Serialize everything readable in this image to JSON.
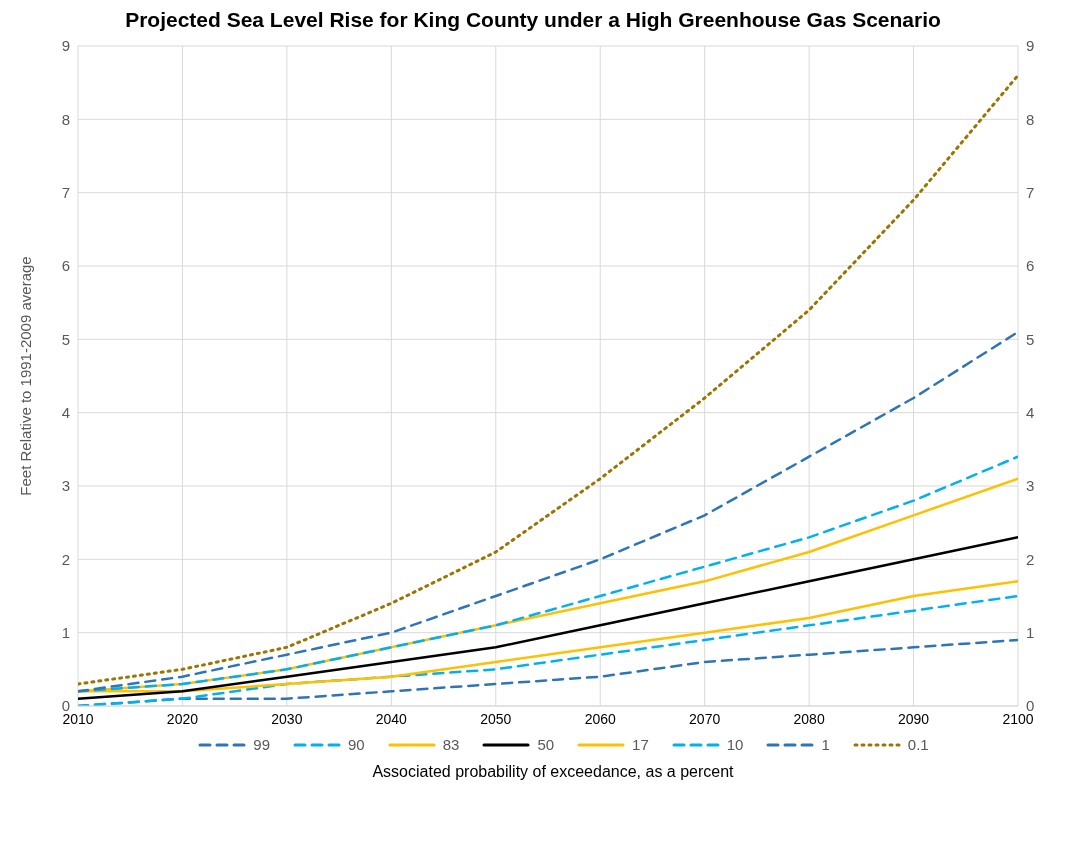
{
  "chart_data": {
    "type": "line",
    "title": "Projected Sea Level Rise for King County under a High Greenhouse Gas Scenario",
    "xlabel": "Associated probability of exceedance, as a percent",
    "ylabel": "Feet Relative to 1991-2009 average",
    "x": [
      2010,
      2020,
      2030,
      2040,
      2050,
      2060,
      2070,
      2080,
      2090,
      2100
    ],
    "xlim": [
      2010,
      2100
    ],
    "xticks": [
      2010,
      2020,
      2030,
      2040,
      2050,
      2060,
      2070,
      2080,
      2090,
      2100
    ],
    "ylim": [
      0,
      9
    ],
    "yticks": [
      0,
      1,
      2,
      3,
      4,
      5,
      6,
      7,
      8,
      9
    ],
    "y2lim": [
      0,
      9
    ],
    "y2ticks": [
      0,
      1,
      2,
      3,
      4,
      5,
      6,
      7,
      8,
      9
    ],
    "grid": true,
    "legend": "bottom",
    "marker": "none",
    "series": [
      {
        "name": "99",
        "color": "#2e75b6",
        "line_style": "dashed",
        "values": [
          0.0,
          0.1,
          0.1,
          0.2,
          0.3,
          0.4,
          0.6,
          0.7,
          0.8,
          0.9
        ]
      },
      {
        "name": "90",
        "color": "#00b0f0",
        "line_style": "dashed",
        "values": [
          0.0,
          0.1,
          0.3,
          0.4,
          0.5,
          0.7,
          0.9,
          1.1,
          1.3,
          1.5
        ]
      },
      {
        "name": "83",
        "color": "#ffc000",
        "line_style": "solid",
        "values": [
          0.2,
          0.2,
          0.3,
          0.4,
          0.6,
          0.8,
          1.0,
          1.2,
          1.5,
          1.7
        ]
      },
      {
        "name": "50",
        "color": "#000000",
        "line_style": "solid",
        "values": [
          0.1,
          0.2,
          0.4,
          0.6,
          0.8,
          1.1,
          1.4,
          1.7,
          2.0,
          2.3
        ]
      },
      {
        "name": "17",
        "color": "#ffc000",
        "line_style": "solid",
        "values": [
          0.2,
          0.3,
          0.5,
          0.8,
          1.1,
          1.4,
          1.7,
          2.1,
          2.6,
          3.1
        ]
      },
      {
        "name": "10",
        "color": "#00b0f0",
        "line_style": "dashed",
        "values": [
          0.2,
          0.3,
          0.5,
          0.8,
          1.1,
          1.5,
          1.9,
          2.3,
          2.8,
          3.4
        ]
      },
      {
        "name": "1",
        "color": "#2e75b6",
        "line_style": "dashed",
        "values": [
          0.2,
          0.4,
          0.7,
          1.0,
          1.5,
          2.0,
          2.6,
          3.4,
          4.2,
          5.1
        ]
      },
      {
        "name": "0.1",
        "color": "#9c7400",
        "line_style": "dotted",
        "values": [
          0.3,
          0.5,
          0.8,
          1.4,
          2.1,
          3.1,
          4.2,
          5.4,
          6.9,
          8.6
        ]
      }
    ]
  }
}
